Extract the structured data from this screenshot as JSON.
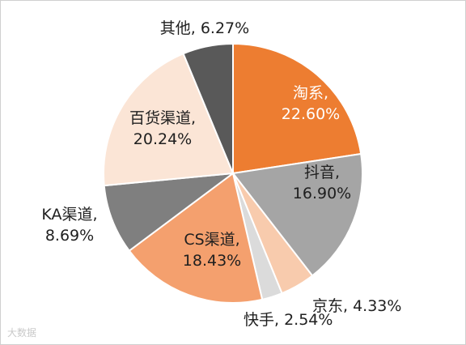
{
  "chart_data": {
    "type": "pie",
    "title": "",
    "slices": [
      {
        "name": "淘系",
        "value": 22.6,
        "label_line1": "淘系,",
        "label_line2": "22.60%",
        "color": "#ED7D31"
      },
      {
        "name": "抖音",
        "value": 16.9,
        "label_line1": "抖音,",
        "label_line2": "16.90%",
        "color": "#A5A5A5"
      },
      {
        "name": "京东",
        "value": 4.33,
        "label_line1": "京东, 4.33%",
        "label_line2": "",
        "color": "#F8CBAD"
      },
      {
        "name": "快手",
        "value": 2.54,
        "label_line1": "快手, 2.54%",
        "label_line2": "",
        "color": "#DBDBDB"
      },
      {
        "name": "CS渠道",
        "value": 18.43,
        "label_line1": "CS渠道,",
        "label_line2": "18.43%",
        "color": "#F4A06E"
      },
      {
        "name": "KA渠道",
        "value": 8.69,
        "label_line1": "KA渠道,",
        "label_line2": "8.69%",
        "color": "#7F7F7F"
      },
      {
        "name": "百货渠道",
        "value": 20.24,
        "label_line1": "百货渠道,",
        "label_line2": "20.24%",
        "color": "#FBE5D6"
      },
      {
        "name": "其他",
        "value": 6.27,
        "label_line1": "其他, 6.27%",
        "label_line2": "",
        "color": "#595959"
      }
    ]
  },
  "watermark": "大数据"
}
